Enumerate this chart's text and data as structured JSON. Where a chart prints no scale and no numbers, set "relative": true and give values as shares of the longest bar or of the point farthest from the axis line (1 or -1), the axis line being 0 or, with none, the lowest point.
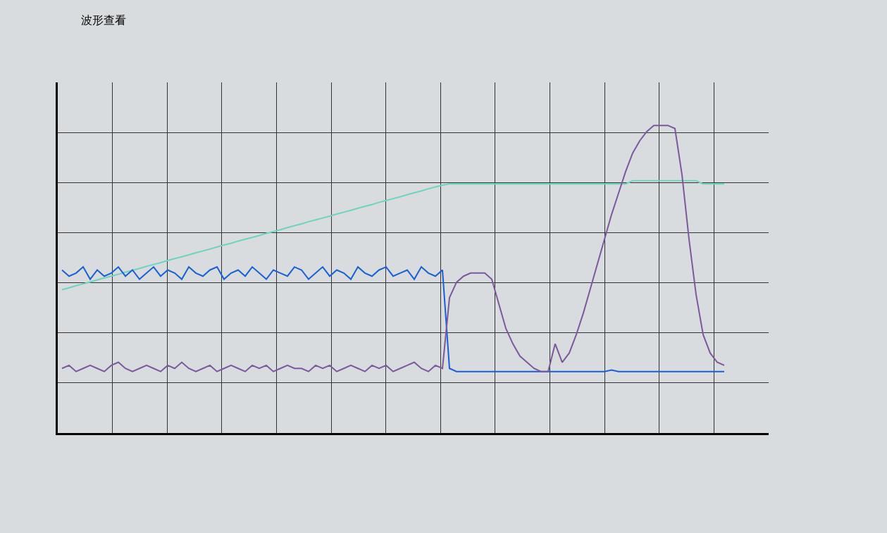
{
  "chart_data": {
    "type": "line",
    "title": "波形查看",
    "relative": true,
    "grid": true,
    "categories": [
      null,
      null,
      null,
      null,
      null,
      null,
      null,
      null,
      null,
      null,
      null,
      null,
      null,
      null,
      null,
      null,
      null,
      null,
      null,
      null,
      null,
      null,
      null,
      null,
      null,
      null,
      null,
      null,
      null,
      null,
      null,
      null,
      null,
      null,
      null,
      null,
      null,
      null,
      null,
      null,
      null,
      null,
      null,
      null,
      null,
      null,
      null,
      null,
      null,
      null,
      null,
      null,
      null,
      null,
      null,
      null,
      null,
      null,
      null,
      null,
      null,
      null,
      null,
      null,
      null,
      null,
      null,
      null,
      null,
      null,
      null,
      null,
      null,
      null,
      null,
      null,
      null,
      null,
      null,
      null,
      null,
      null,
      null,
      null,
      null,
      null,
      null,
      null,
      null,
      null,
      null,
      null,
      null,
      null,
      null
    ],
    "series": [
      {
        "color": "#6fd3c0",
        "values": [
          0.466,
          0.472,
          0.479,
          0.485,
          0.491,
          0.498,
          0.504,
          0.51,
          0.516,
          0.523,
          0.529,
          0.535,
          0.542,
          0.548,
          0.554,
          0.561,
          0.567,
          0.573,
          0.579,
          0.586,
          0.592,
          0.598,
          0.605,
          0.611,
          0.617,
          0.624,
          0.63,
          0.636,
          0.642,
          0.649,
          0.655,
          0.661,
          0.668,
          0.674,
          0.68,
          0.687,
          0.693,
          0.699,
          0.705,
          0.712,
          0.718,
          0.724,
          0.731,
          0.737,
          0.743,
          0.75,
          0.756,
          0.762,
          0.768,
          0.775,
          0.781,
          0.787,
          0.794,
          0.8,
          0.806,
          0.81,
          0.81,
          0.81,
          0.81,
          0.81,
          0.81,
          0.81,
          0.81,
          0.81,
          0.81,
          0.81,
          0.81,
          0.81,
          0.81,
          0.81,
          0.81,
          0.81,
          0.81,
          0.81,
          0.81,
          0.81,
          0.81,
          0.81,
          0.81,
          0.81,
          0.81,
          0.82,
          0.82,
          0.82,
          0.82,
          0.82,
          0.82,
          0.82,
          0.82,
          0.82,
          0.82,
          0.81,
          0.81,
          0.81,
          0.81
        ]
      },
      {
        "color": "#1a5fd6",
        "values": [
          0.53,
          0.51,
          0.52,
          0.54,
          0.5,
          0.53,
          0.51,
          0.52,
          0.54,
          0.51,
          0.53,
          0.5,
          0.52,
          0.54,
          0.51,
          0.53,
          0.52,
          0.5,
          0.54,
          0.52,
          0.51,
          0.53,
          0.54,
          0.5,
          0.52,
          0.53,
          0.51,
          0.54,
          0.52,
          0.5,
          0.53,
          0.52,
          0.51,
          0.54,
          0.53,
          0.5,
          0.52,
          0.54,
          0.51,
          0.53,
          0.52,
          0.5,
          0.54,
          0.52,
          0.51,
          0.53,
          0.54,
          0.51,
          0.52,
          0.53,
          0.5,
          0.54,
          0.52,
          0.51,
          0.53,
          0.21,
          0.2,
          0.2,
          0.2,
          0.2,
          0.2,
          0.2,
          0.2,
          0.2,
          0.2,
          0.2,
          0.2,
          0.2,
          0.2,
          0.2,
          0.2,
          0.2,
          0.2,
          0.2,
          0.2,
          0.2,
          0.2,
          0.2,
          0.205,
          0.2,
          0.2,
          0.2,
          0.2,
          0.2,
          0.2,
          0.2,
          0.2,
          0.2,
          0.2,
          0.2,
          0.2,
          0.2,
          0.2,
          0.2,
          0.2
        ]
      },
      {
        "color": "#7a5a9a",
        "values": [
          0.21,
          0.22,
          0.2,
          0.21,
          0.22,
          0.21,
          0.2,
          0.22,
          0.23,
          0.21,
          0.2,
          0.21,
          0.22,
          0.21,
          0.2,
          0.22,
          0.21,
          0.23,
          0.21,
          0.2,
          0.21,
          0.22,
          0.2,
          0.21,
          0.22,
          0.21,
          0.2,
          0.22,
          0.21,
          0.22,
          0.2,
          0.21,
          0.22,
          0.21,
          0.21,
          0.2,
          0.22,
          0.21,
          0.22,
          0.2,
          0.21,
          0.22,
          0.21,
          0.2,
          0.22,
          0.21,
          0.22,
          0.2,
          0.21,
          0.22,
          0.23,
          0.21,
          0.2,
          0.22,
          0.21,
          0.44,
          0.49,
          0.51,
          0.52,
          0.52,
          0.52,
          0.5,
          0.42,
          0.34,
          0.29,
          0.25,
          0.23,
          0.21,
          0.2,
          0.2,
          0.29,
          0.23,
          0.26,
          0.32,
          0.39,
          0.47,
          0.55,
          0.63,
          0.71,
          0.78,
          0.85,
          0.91,
          0.95,
          0.98,
          1.0,
          1,
          1.0,
          0.99,
          0.84,
          0.63,
          0.45,
          0.32,
          0.26,
          0.23,
          0.22
        ]
      }
    ]
  }
}
